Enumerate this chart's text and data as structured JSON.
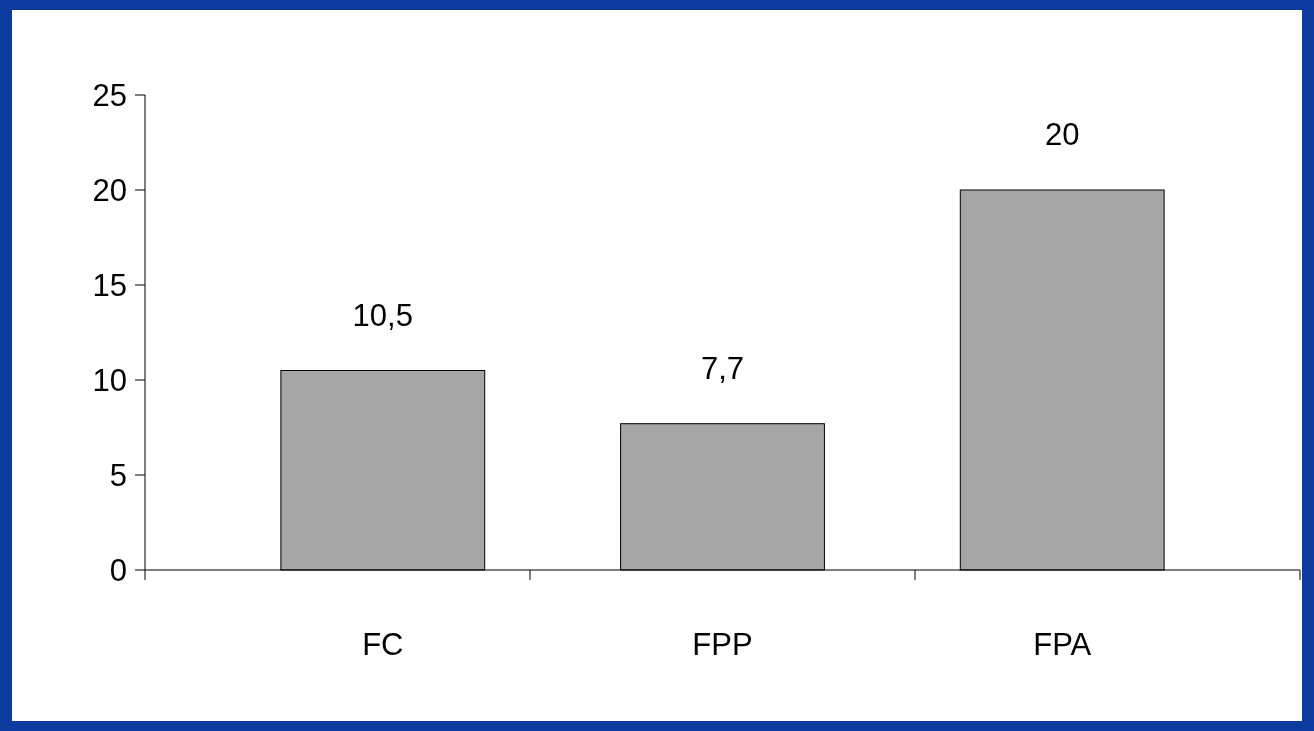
{
  "chart_data": {
    "type": "bar",
    "categories": [
      "FC",
      "FPP",
      "FPA"
    ],
    "values": [
      10.5,
      7.7,
      20
    ],
    "color": "#a6a6a6",
    "value_labels": [
      "10,5",
      "7,7",
      "20"
    ],
    "ylim": [
      0,
      25
    ],
    "yticks": [
      0,
      5,
      10,
      15,
      20,
      25
    ],
    "grid": false
  }
}
